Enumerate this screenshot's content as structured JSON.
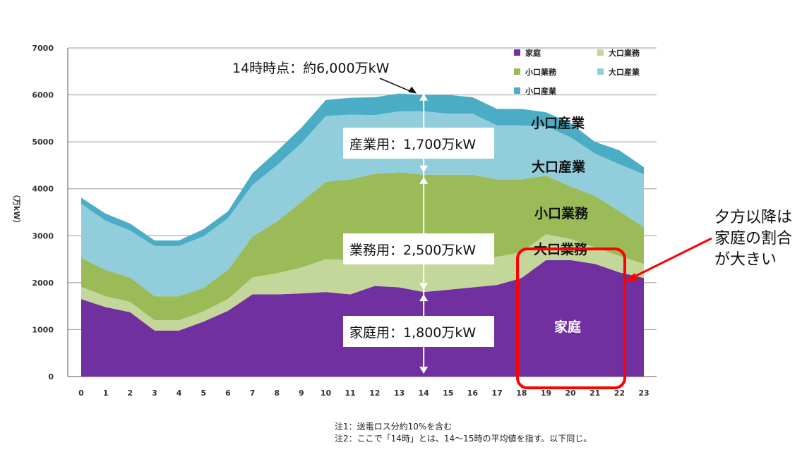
{
  "chart_data": {
    "type": "area",
    "stacked": true,
    "ylabel": "（万kW）",
    "ylim": [
      0,
      7000
    ],
    "yticks": [
      "0",
      "1000",
      "2000",
      "3000",
      "4000",
      "5000",
      "6000",
      "7000"
    ],
    "x": [
      "0",
      "1",
      "2",
      "3",
      "4",
      "5",
      "6",
      "7",
      "8",
      "9",
      "10",
      "11",
      "12",
      "13",
      "14",
      "15",
      "16",
      "17",
      "18",
      "19",
      "20",
      "21",
      "22",
      "23"
    ],
    "grid": true,
    "legend_position": "top-right",
    "series": [
      {
        "name": "家庭",
        "color": "#7030A0",
        "values": [
          1650,
          1480,
          1370,
          980,
          980,
          1170,
          1400,
          1750,
          1750,
          1770,
          1800,
          1750,
          1930,
          1900,
          1800,
          1850,
          1900,
          1950,
          2100,
          2480,
          2480,
          2400,
          2220,
          2100
        ]
      },
      {
        "name": "大口業務",
        "color": "#C4D79B",
        "values": [
          260,
          230,
          220,
          220,
          220,
          220,
          250,
          360,
          450,
          550,
          700,
          730,
          500,
          500,
          600,
          550,
          550,
          600,
          550,
          550,
          450,
          350,
          350,
          300
        ]
      },
      {
        "name": "小口業務",
        "color": "#9BBB59",
        "values": [
          620,
          560,
          520,
          510,
          510,
          500,
          620,
          870,
          1100,
          1400,
          1650,
          1720,
          1890,
          1950,
          1900,
          1900,
          1850,
          1650,
          1550,
          1250,
          1120,
          1100,
          950,
          780
        ]
      },
      {
        "name": "大口産業",
        "color": "#92CDDC",
        "values": [
          1150,
          1050,
          1000,
          1070,
          1070,
          1100,
          1100,
          1100,
          1200,
          1250,
          1400,
          1380,
          1250,
          1300,
          1350,
          1300,
          1300,
          1150,
          1150,
          1050,
          1050,
          900,
          1000,
          1130
        ]
      },
      {
        "name": "小口産業",
        "color": "#4BACC6",
        "values": [
          130,
          150,
          150,
          120,
          120,
          150,
          150,
          250,
          300,
          330,
          340,
          360,
          380,
          380,
          350,
          400,
          350,
          350,
          350,
          300,
          300,
          250,
          300,
          150
        ]
      }
    ],
    "legend": [
      "家庭",
      "大口業務",
      "小口業務",
      "大口産業",
      "小口産業"
    ],
    "annotations": {
      "peak": "14時時点：約6,000万kW",
      "industry": "産業用：1,700万kW",
      "business": "業務用：2,500万kW",
      "household": "家庭用：1,800万kW",
      "layer_labels": [
        "小口産業",
        "大口産業",
        "小口業務",
        "大口業務",
        "家庭"
      ]
    }
  },
  "callout": {
    "lines": [
      "夕方以降は",
      "家庭の割合",
      "が大きい"
    ],
    "box_color": "#FF0000"
  },
  "notes": {
    "note1": "注1：送電ロス分約10%を含む",
    "note2": "注2：ここで「14時」とは、14～15時の平均値を指す。以下同じ。"
  }
}
